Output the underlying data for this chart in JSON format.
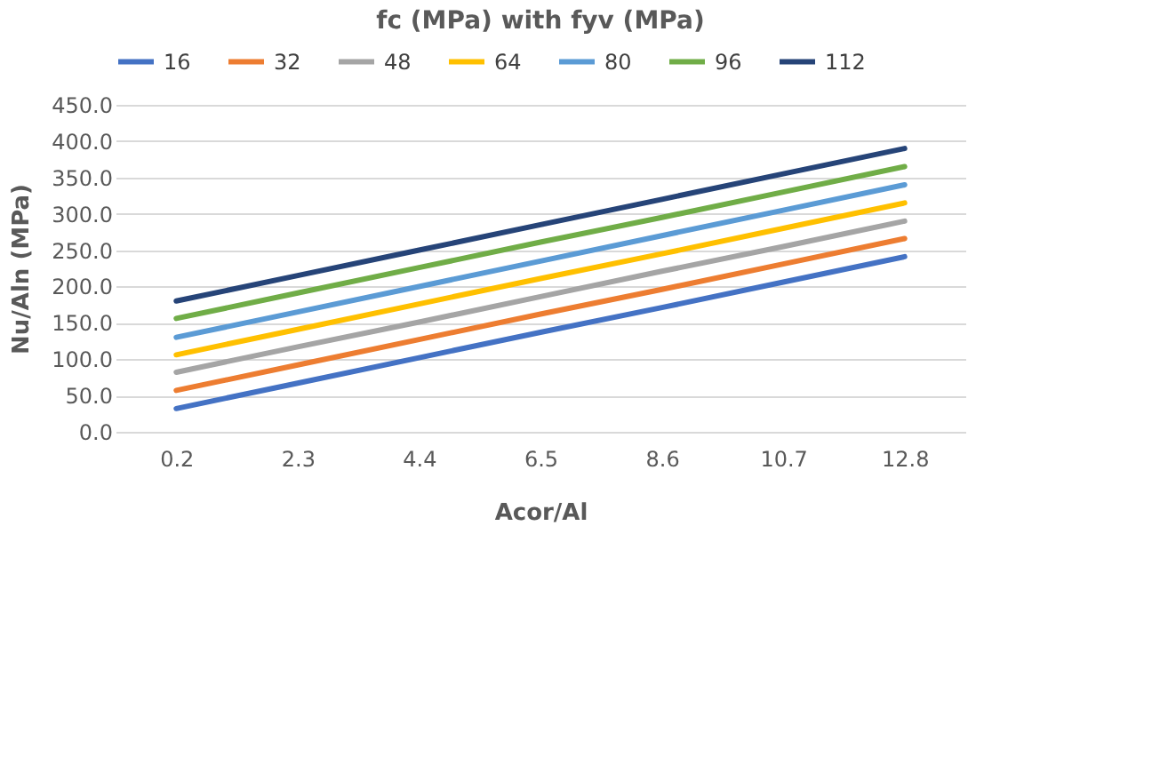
{
  "chart_data": {
    "type": "line",
    "title": "fc (MPa) with fyv (MPa)",
    "xlabel": "Acor/Al",
    "ylabel": "Nu/Aln (MPa)",
    "categories": [
      "0.2",
      "2.3",
      "4.4",
      "6.5",
      "8.6",
      "10.7",
      "12.8"
    ],
    "series": [
      {
        "name": "16",
        "color": "#4472c4",
        "values": [
          32,
          67,
          102,
          137,
          171,
          206,
          241
        ]
      },
      {
        "name": "32",
        "color": "#ed7d31",
        "values": [
          57,
          92,
          127,
          162,
          196,
          231,
          266
        ]
      },
      {
        "name": "48",
        "color": "#a5a5a5",
        "values": [
          82,
          117,
          151,
          186,
          221,
          255,
          290
        ]
      },
      {
        "name": "64",
        "color": "#ffc000",
        "values": [
          106,
          141,
          176,
          211,
          245,
          280,
          315
        ]
      },
      {
        "name": "80",
        "color": "#5b9bd5",
        "values": [
          130,
          165,
          200,
          235,
          270,
          305,
          340
        ]
      },
      {
        "name": "96",
        "color": "#70ad47",
        "values": [
          156,
          191,
          226,
          261,
          295,
          330,
          365
        ]
      },
      {
        "name": "112",
        "color": "#264478",
        "values": [
          180,
          215,
          250,
          285,
          320,
          355,
          390
        ]
      }
    ],
    "ylim": [
      0,
      450
    ],
    "yticks": [
      {
        "value": 0,
        "label": "0.0"
      },
      {
        "value": 50,
        "label": "50.0"
      },
      {
        "value": 100,
        "label": "100.0"
      },
      {
        "value": 150,
        "label": "150.0"
      },
      {
        "value": 200,
        "label": "200.0"
      },
      {
        "value": 250,
        "label": "250.0"
      },
      {
        "value": 300,
        "label": "300.0"
      },
      {
        "value": 350,
        "label": "350.0"
      },
      {
        "value": 400,
        "label": "400.0"
      },
      {
        "value": 450,
        "label": "450.0"
      }
    ],
    "grid": "y",
    "legend": "top",
    "marker": "none",
    "line_style": "solid"
  }
}
